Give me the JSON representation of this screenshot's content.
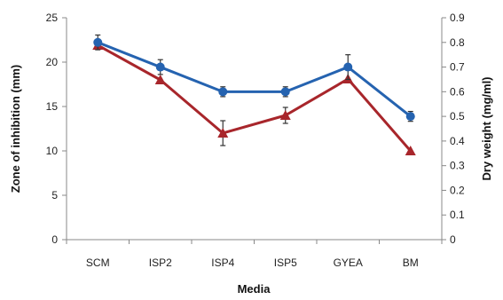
{
  "chart_data": {
    "type": "line",
    "categories": [
      "SCM",
      "ISP2",
      "ISP4",
      "ISP5",
      "GYEA",
      "BM"
    ],
    "xlabel": "Media",
    "ylabel_left": "Zone of inhibition (mm)",
    "ylabel_right": "Dry weight (mg/ml)",
    "ylim_left": [
      0,
      25
    ],
    "ylim_right": [
      0,
      0.9
    ],
    "yticks_left": [
      "0",
      "5",
      "10",
      "15",
      "20",
      "25"
    ],
    "yticks_right": [
      "0",
      "0.1",
      "0.2",
      "0.3",
      "0.4",
      "0.5",
      "0.6",
      "0.7",
      "0.8",
      "0.9"
    ],
    "grid": false,
    "series": [
      {
        "axis": "right",
        "marker": "circle",
        "color": "#2563b0",
        "values": [
          0.8,
          0.7,
          0.6,
          0.6,
          0.7,
          0.5
        ],
        "errors": [
          0.03,
          0.03,
          0.02,
          0.02,
          0.05,
          0.02
        ]
      },
      {
        "axis": "left",
        "marker": "triangle",
        "color": "#a8262b",
        "values": [
          21.9,
          18.0,
          12.0,
          14.0,
          18.1,
          10.0
        ],
        "errors": [
          0,
          0,
          1.4,
          0.9,
          0,
          0
        ]
      }
    ]
  }
}
